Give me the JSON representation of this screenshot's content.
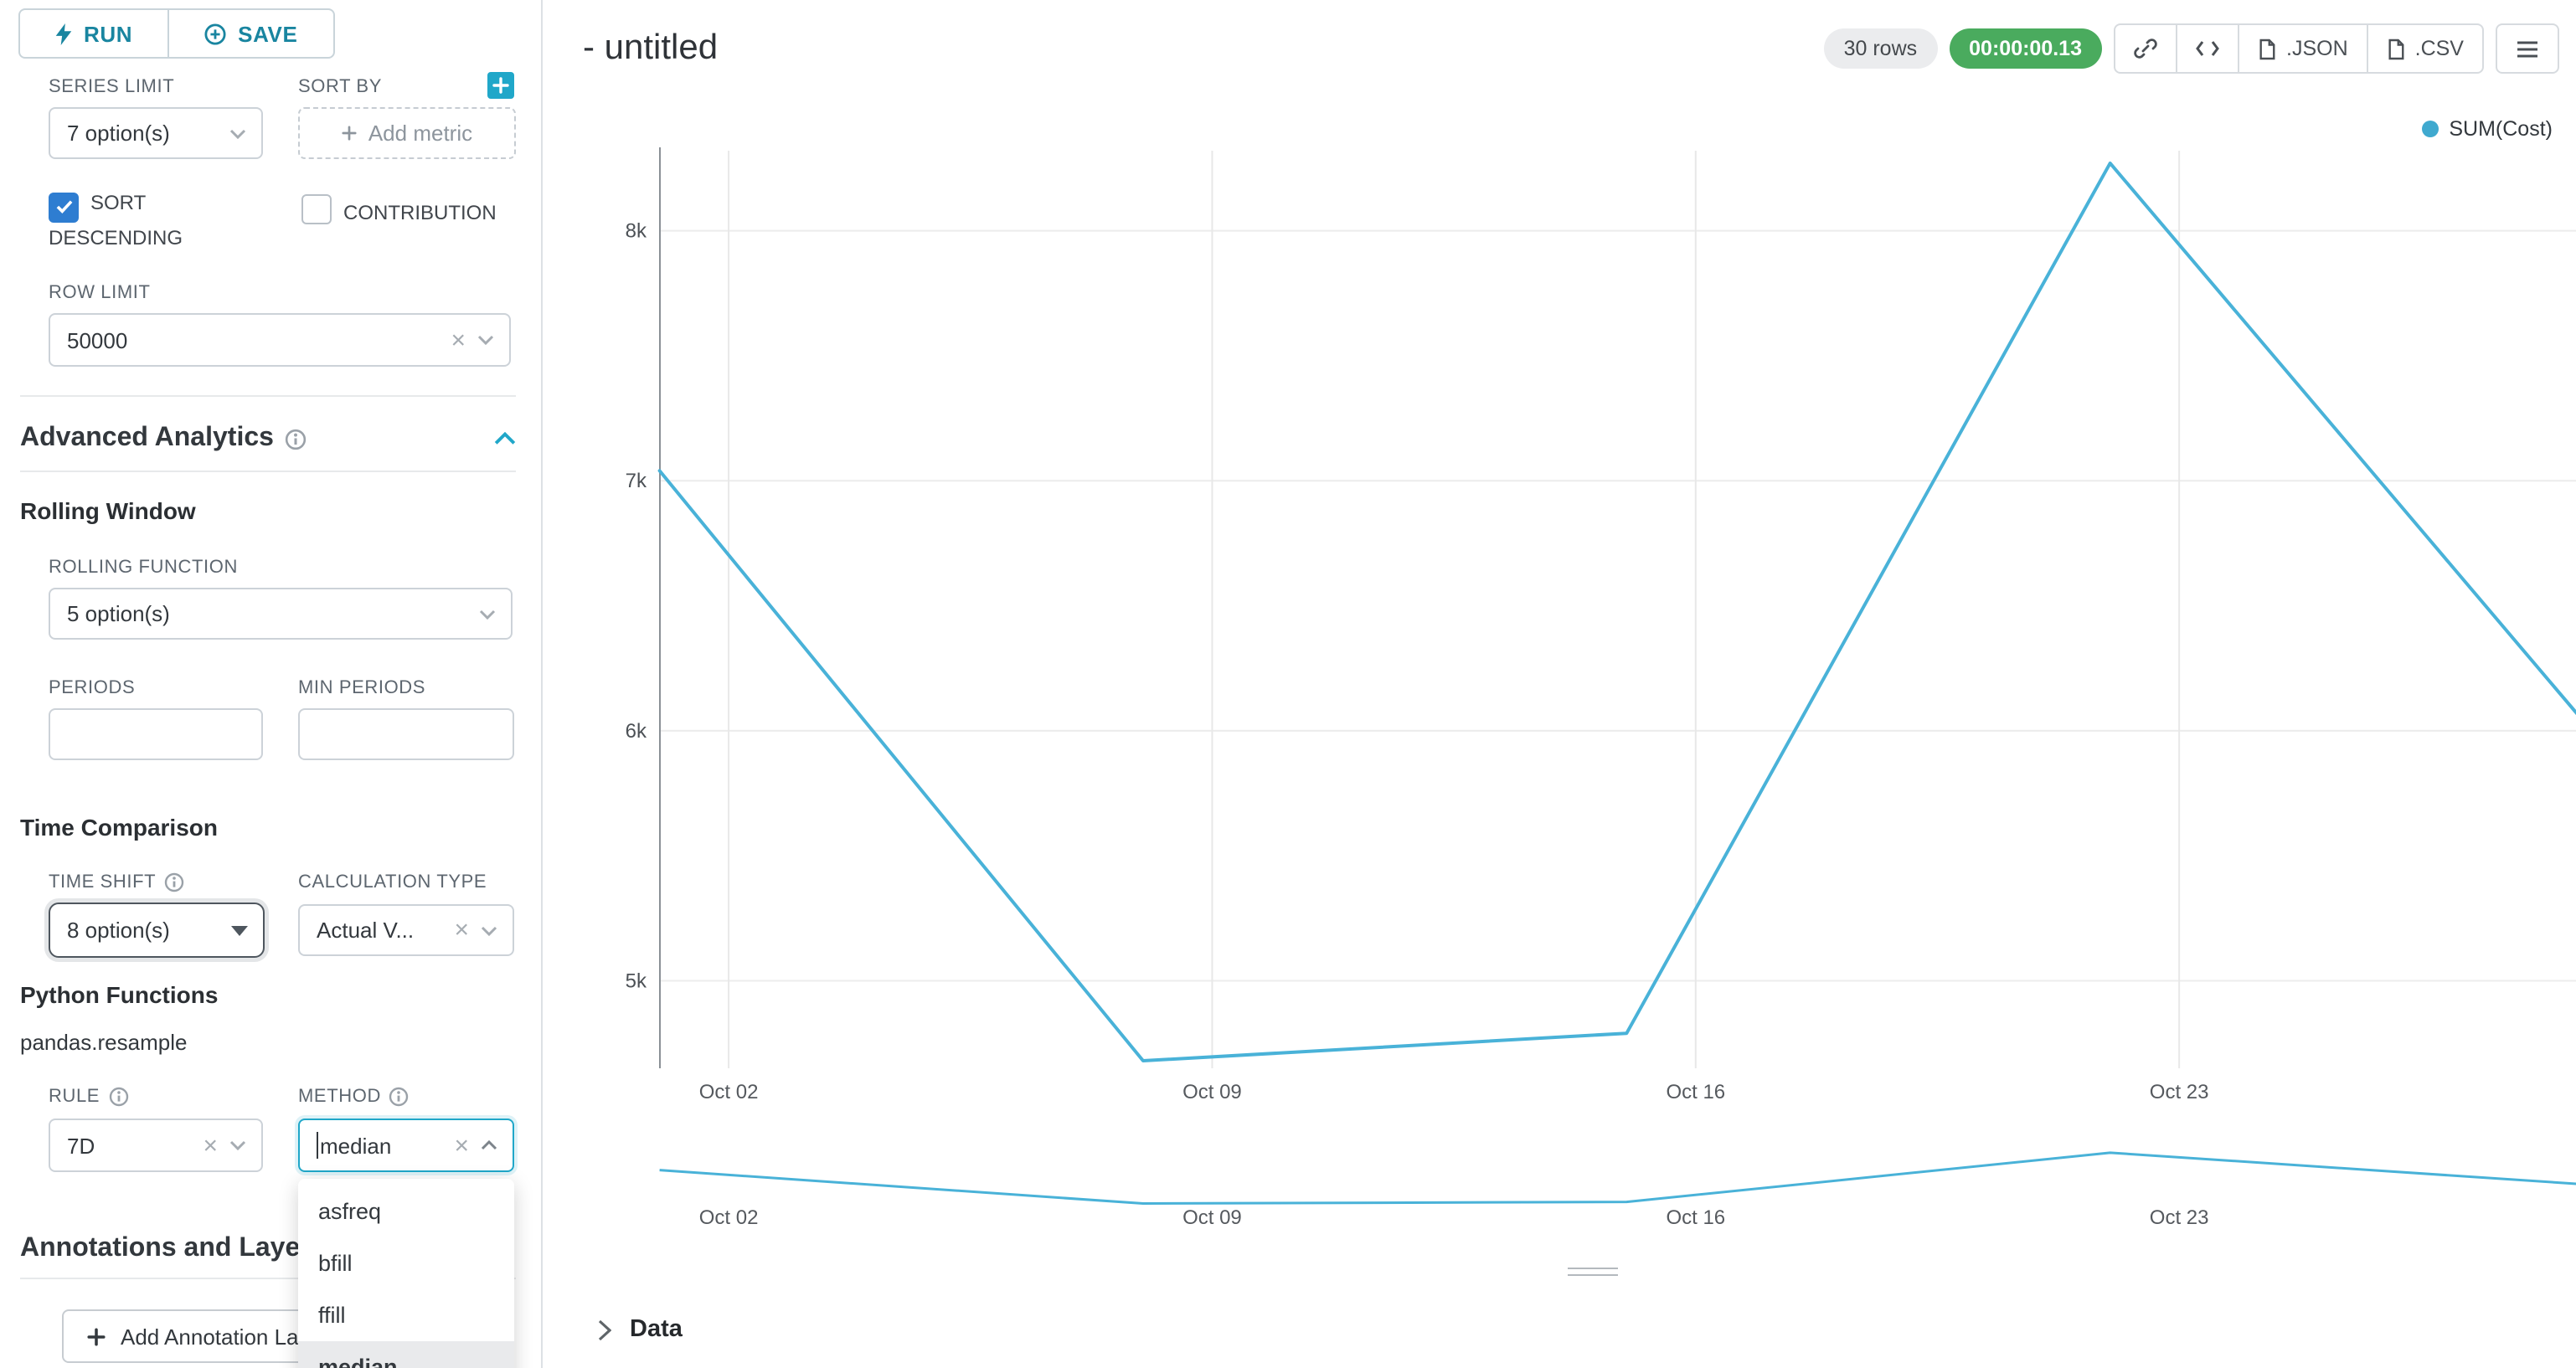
{
  "colors": {
    "accent": "#20a7c9",
    "accent_dark": "#1985a0",
    "checkbox": "#2e7dd1",
    "line": "#49b2d8",
    "timer_green": "#4aab5e",
    "legend_dot": "#3fa9cf"
  },
  "actions": {
    "run": "RUN",
    "save": "SAVE"
  },
  "controls": {
    "series_limit": {
      "label": "SERIES LIMIT",
      "value": "7 option(s)"
    },
    "sort_by": {
      "label": "SORT BY",
      "placeholder": "Add metric"
    },
    "sort_descending": {
      "label": "SORT DESCENDING",
      "checked": true
    },
    "contribution": {
      "label": "CONTRIBUTION",
      "checked": false
    },
    "row_limit": {
      "label": "ROW LIMIT",
      "value": "50000"
    },
    "advanced_analytics": {
      "title": "Advanced Analytics"
    },
    "rolling_window": {
      "title": "Rolling Window"
    },
    "rolling_function": {
      "label": "ROLLING FUNCTION",
      "value": "5 option(s)"
    },
    "periods": {
      "label": "PERIODS",
      "value": ""
    },
    "min_periods": {
      "label": "MIN PERIODS",
      "value": ""
    },
    "time_comparison": {
      "title": "Time Comparison"
    },
    "time_shift": {
      "label": "TIME SHIFT",
      "value": "8 option(s)"
    },
    "calculation_type": {
      "label": "CALCULATION TYPE",
      "value": "Actual V..."
    },
    "python_functions": {
      "title": "Python Functions",
      "subtitle": "pandas.resample"
    },
    "rule": {
      "label": "RULE",
      "value": "7D"
    },
    "method": {
      "label": "METHOD",
      "value": "median",
      "options": [
        "asfreq",
        "bfill",
        "ffill",
        "median"
      ],
      "selected": "median"
    },
    "annotations": {
      "title": "Annotations and Layers",
      "add_label": "Add Annotation Layer"
    }
  },
  "header": {
    "title": "- untitled",
    "rows_badge": "30 rows",
    "timer_badge": "00:00:00.13",
    "export_json": ".JSON",
    "export_csv": ".CSV"
  },
  "data_panel": {
    "title": "Data"
  },
  "chart_data": {
    "type": "line",
    "title": "",
    "legend": [
      {
        "name": "SUM(Cost)",
        "color": "#3fa9cf"
      }
    ],
    "legend_position": "top-right",
    "grid": true,
    "x_axis": {
      "ticks": [
        {
          "label": "Oct 02",
          "day": 1
        },
        {
          "label": "Oct 09",
          "day": 8
        },
        {
          "label": "Oct 16",
          "day": 15
        },
        {
          "label": "Oct 23",
          "day": 22
        }
      ],
      "domain_days": [
        0,
        29
      ]
    },
    "y_axis": {
      "ticks": [
        {
          "label": "8k",
          "value": 8000
        },
        {
          "label": "7k",
          "value": 7000
        },
        {
          "label": "6k",
          "value": 6000
        },
        {
          "label": "5k",
          "value": 5000
        }
      ],
      "range": [
        4650,
        8320
      ]
    },
    "series": [
      {
        "name": "SUM(Cost)",
        "color": "#49b2d8",
        "points": [
          {
            "date": "Oct 01",
            "day": 0,
            "value": 7040
          },
          {
            "date": "Oct 08",
            "day": 7,
            "value": 4680
          },
          {
            "date": "Oct 15",
            "day": 14,
            "value": 4790
          },
          {
            "date": "Oct 22",
            "day": 21,
            "value": 8270
          },
          {
            "date": "Oct 29",
            "day": 28,
            "value": 5990
          }
        ]
      }
    ],
    "mini_chart": {
      "present": true,
      "x_tick_labels": [
        "Oct 02",
        "Oct 09",
        "Oct 16",
        "Oct 23"
      ]
    }
  }
}
